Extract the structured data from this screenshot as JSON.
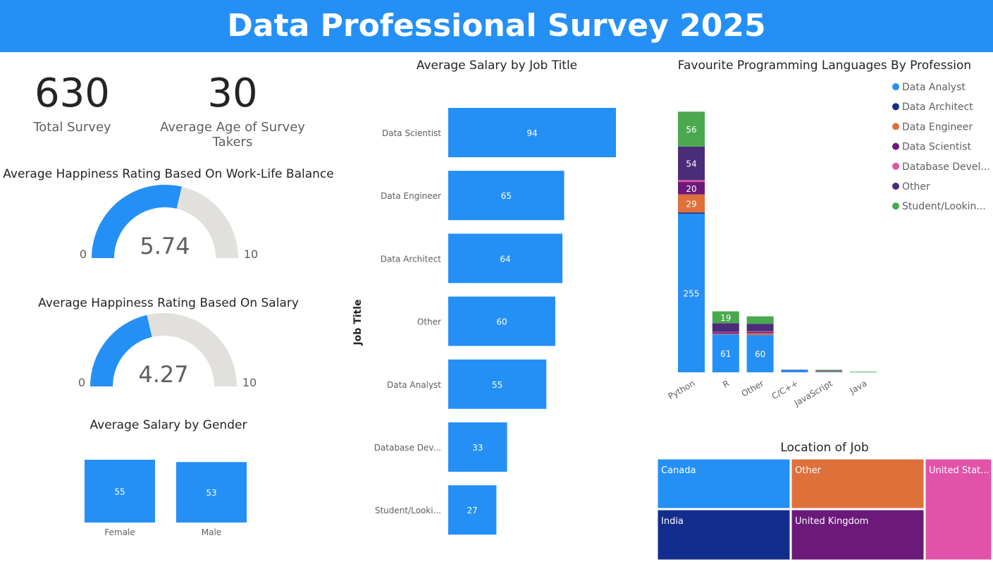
{
  "header": {
    "title": "Data Professional Survey 2025"
  },
  "kpis": {
    "total_survey": {
      "value": "630",
      "label": "Total Survey"
    },
    "average_age": {
      "value": "30",
      "label": "Average Age of Survey Takers"
    }
  },
  "colors": {
    "header_bg": "#2490f5",
    "primary_bar": "#2490f5",
    "gauge_track": "#e2e0dc",
    "data_analyst": "#2490f5",
    "data_architect": "#122d8c",
    "data_engineer": "#e0703a",
    "data_scientist": "#6b1a7a",
    "database_dev": "#e153a8",
    "other": "#4a2d7a",
    "student": "#4aa84f"
  },
  "chart_data": [
    {
      "id": "gauge_wlb",
      "type": "gauge",
      "title": "Average Happiness Rating Based On Work-Life Balance",
      "value": 5.74,
      "value_label": "5.74",
      "min": 0,
      "max": 10,
      "min_label": "0",
      "max_label": "10"
    },
    {
      "id": "gauge_salary",
      "type": "gauge",
      "title": "Average Happiness Rating Based On Salary",
      "value": 4.27,
      "value_label": "4.27",
      "min": 0,
      "max": 10,
      "min_label": "0",
      "max_label": "10"
    },
    {
      "id": "salary_gender",
      "type": "bar",
      "title": "Average Salary by Gender",
      "categories": [
        "Female",
        "Male"
      ],
      "values": [
        55,
        53
      ],
      "ylim": [
        0,
        55
      ]
    },
    {
      "id": "salary_job",
      "type": "bar",
      "orientation": "horizontal",
      "title": "Average Salary by Job Title",
      "ylabel": "Job Title",
      "categories": [
        "Data Scientist",
        "Data Engineer",
        "Data Architect",
        "Other",
        "Data Analyst",
        "Database Dev...",
        "Student/Looki..."
      ],
      "values": [
        94,
        65,
        64,
        60,
        55,
        33,
        27
      ],
      "xlim": [
        0,
        94
      ]
    },
    {
      "id": "languages",
      "type": "bar",
      "stacked": true,
      "title": "Favourite Programming Languages By Profession",
      "categories": [
        "Python",
        "R",
        "Other",
        "C/C++",
        "JavaScript",
        "Java"
      ],
      "legend_position": "right",
      "ylim": [
        0,
        433
      ],
      "series": [
        {
          "name": "Data Analyst",
          "color": "#2490f5",
          "values": [
            255,
            61,
            60,
            3,
            1,
            0
          ],
          "labels": [
            "255",
            "61",
            "60",
            "",
            "",
            ""
          ]
        },
        {
          "name": "Data Architect",
          "color": "#122d8c",
          "values": [
            2,
            0,
            0,
            1,
            0,
            0
          ],
          "labels": [
            "",
            "",
            "",
            "",
            "",
            ""
          ]
        },
        {
          "name": "Data Engineer",
          "color": "#e0703a",
          "values": [
            29,
            1,
            3,
            0,
            1,
            0
          ],
          "labels": [
            "29",
            "",
            "",
            "",
            "",
            ""
          ]
        },
        {
          "name": "Data Scientist",
          "color": "#6b1a7a",
          "values": [
            20,
            2,
            2,
            0,
            0,
            0
          ],
          "labels": [
            "20",
            "",
            "",
            "",
            "",
            ""
          ]
        },
        {
          "name": "Database Devel...",
          "color": "#e153a8",
          "values": [
            3,
            1,
            1,
            0,
            0,
            0
          ],
          "labels": [
            "",
            "",
            "",
            "",
            "",
            ""
          ]
        },
        {
          "name": "Other",
          "color": "#4a2d7a",
          "values": [
            54,
            14,
            12,
            0,
            1,
            0
          ],
          "labels": [
            "54",
            "",
            "",
            "",
            "",
            ""
          ]
        },
        {
          "name": "Student/Lookin...",
          "color": "#4aa84f",
          "values": [
            56,
            19,
            12,
            0,
            1,
            1
          ],
          "labels": [
            "56",
            "19",
            "",
            "",
            "",
            ""
          ]
        }
      ]
    },
    {
      "id": "location",
      "type": "treemap",
      "title": "Location of Job",
      "items": [
        {
          "name": "Canada",
          "color": "#2490f5"
        },
        {
          "name": "Other",
          "color": "#e0703a"
        },
        {
          "name": "United Stat...",
          "color": "#e153a8"
        },
        {
          "name": "India",
          "color": "#122d8c"
        },
        {
          "name": "United Kingdom",
          "color": "#6b1a7a"
        }
      ]
    }
  ]
}
